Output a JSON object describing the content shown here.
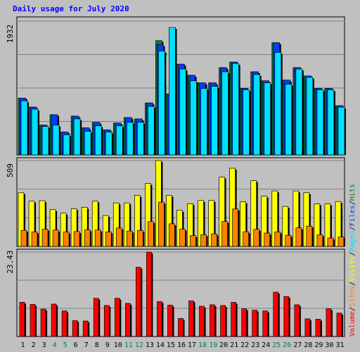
{
  "chart_data": {
    "type": "bar",
    "title": "Daily usage for July 2020",
    "categories": [
      "1",
      "2",
      "3",
      "4",
      "5",
      "6",
      "7",
      "8",
      "9",
      "10",
      "11",
      "12",
      "13",
      "14",
      "15",
      "16",
      "17",
      "18",
      "19",
      "20",
      "21",
      "22",
      "23",
      "24",
      "25",
      "26",
      "27",
      "28",
      "29",
      "30",
      "31"
    ],
    "weekend_days": [
      "4",
      "5",
      "11",
      "12",
      "18",
      "19",
      "25",
      "26"
    ],
    "panels": [
      {
        "name": "hits_files_pages",
        "ymax_label": "1932",
        "ylim": [
          0,
          1932
        ],
        "series": [
          {
            "name": "Hits",
            "color": "#008040",
            "values": [
              820,
              690,
              430,
              580,
              330,
              560,
              390,
              470,
              360,
              460,
              540,
              520,
              750,
              1650,
              880,
              1310,
              1150,
              1040,
              1040,
              1260,
              1340,
              960,
              1200,
              1070,
              1620,
              1080,
              1260,
              1140,
              960,
              960,
              710
            ]
          },
          {
            "name": "Files",
            "color": "#0040ff",
            "values": [
              820,
              690,
              430,
              580,
              330,
              560,
              390,
              470,
              360,
              460,
              540,
              520,
              750,
              1590,
              880,
              1310,
              1150,
              1040,
              1040,
              1260,
              1340,
              960,
              1200,
              1070,
              1620,
              1080,
              1260,
              1140,
              960,
              960,
              710
            ]
          },
          {
            "name": "Pages",
            "color": "#00e0ff",
            "values": [
              780,
              660,
              410,
              430,
              290,
              520,
              340,
              420,
              330,
              420,
              470,
              470,
              700,
              1500,
              1840,
              1240,
              1070,
              960,
              990,
              1200,
              1320,
              940,
              1160,
              1040,
              1480,
              1020,
              1240,
              1120,
              940,
              940,
              690
            ]
          }
        ]
      },
      {
        "name": "visits_sites",
        "ymax_label": "509",
        "ylim": [
          0,
          509
        ],
        "series": [
          {
            "name": "Visits",
            "color": "#ffff00",
            "values": [
              318,
              268,
              271,
              218,
              197,
              223,
              232,
              268,
              183,
              258,
              258,
              302,
              373,
              509,
              303,
              214,
              253,
              272,
              272,
              410,
              463,
              264,
              390,
              297,
              329,
              237,
              329,
              318,
              252,
              252,
              266
            ]
          },
          {
            "name": "Sites",
            "color": "#ff8000",
            "values": [
              95,
              86,
              102,
              97,
              85,
              88,
              98,
              97,
              86,
              109,
              91,
              95,
              147,
              262,
              134,
              102,
              64,
              69,
              74,
              148,
              222,
              87,
              101,
              79,
              86,
              66,
              110,
              120,
              69,
              50,
              56
            ]
          }
        ]
      },
      {
        "name": "volume",
        "ymax_label": "23.43",
        "ylim": [
          0,
          23.43
        ],
        "series": [
          {
            "name": "Volume",
            "color": "#ff0000",
            "values": [
              9.5,
              8.9,
              7.6,
              9.0,
              7.1,
              4.4,
              4.3,
              10.6,
              8.6,
              10.6,
              9.2,
              19.2,
              23.43,
              9.7,
              8.7,
              5.0,
              9.9,
              8.4,
              8.8,
              8.6,
              9.5,
              7.7,
              7.3,
              7.1,
              12.3,
              11.1,
              8.8,
              4.9,
              4.8,
              7.7,
              6.5
            ]
          }
        ]
      }
    ],
    "legend_side": "right"
  },
  "legend": [
    {
      "text": "Volume",
      "color": "#ff0000"
    },
    {
      "text": "/",
      "color": "#000000"
    },
    {
      "text": "Sites",
      "color": "#ff8000"
    },
    {
      "text": "/",
      "color": "#000000"
    },
    {
      "text": "Visits",
      "color": "#ffff00"
    },
    {
      "text": "/",
      "color": "#000000"
    },
    {
      "text": "Pages",
      "color": "#00e0ff"
    },
    {
      "text": "/",
      "color": "#000000"
    },
    {
      "text": "Files",
      "color": "#0040ff"
    },
    {
      "text": "/",
      "color": "#000000"
    },
    {
      "text": "Hits",
      "color": "#008040"
    }
  ],
  "colors": {
    "background": "#c0c0c0",
    "title": "#0000ff",
    "weekday_label": "#000000",
    "weekend_label": "#00805c",
    "gridline": "#808080"
  }
}
